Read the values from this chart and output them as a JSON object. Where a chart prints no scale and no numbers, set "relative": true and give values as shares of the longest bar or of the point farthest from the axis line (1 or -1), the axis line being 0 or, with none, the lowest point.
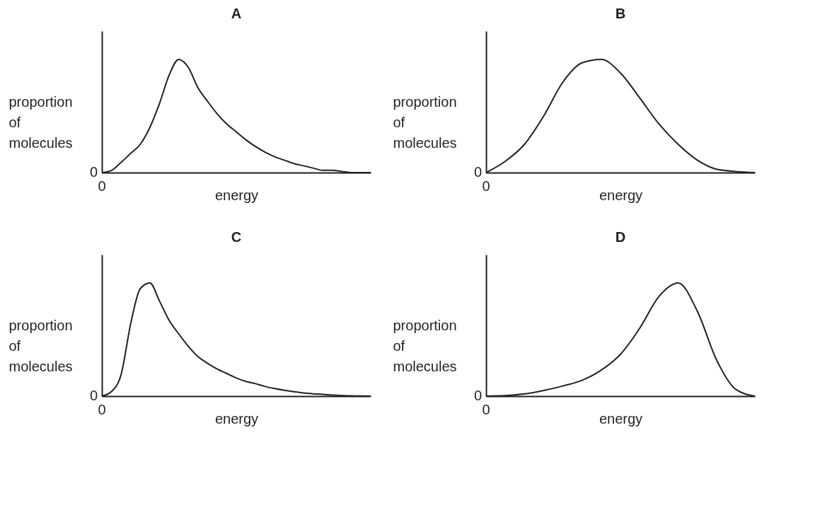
{
  "chart_data": [
    {
      "type": "line",
      "title": "A",
      "xlabel": "energy",
      "ylabel": "proportion of molecules",
      "relative": true,
      "marker": "none",
      "legend": false,
      "grid": false,
      "annotations": [
        "0",
        "0"
      ],
      "categories": [
        null,
        null,
        null,
        null,
        null,
        null,
        null,
        null,
        null,
        null,
        null,
        null,
        null,
        null,
        null,
        null,
        null,
        null,
        null,
        null,
        null,
        null,
        null,
        null,
        null,
        null,
        null,
        null,
        null
      ],
      "series": [
        {
          "color": "#231f20",
          "values": [
            0,
            0.02,
            0.09,
            0.17,
            0.25,
            0.4,
            0.61,
            0.86,
            1,
            0.93,
            0.75,
            0.63,
            0.52,
            0.43,
            0.36,
            0.29,
            0.23,
            0.18,
            0.14,
            0.11,
            0.08,
            0.06,
            0.04,
            0.02,
            0.02,
            0.01,
            0,
            0,
            0
          ]
        }
      ]
    },
    {
      "type": "line",
      "title": "B",
      "xlabel": "energy",
      "ylabel": "proportion of molecules",
      "relative": true,
      "marker": "none",
      "legend": false,
      "grid": false,
      "annotations": [
        "0",
        "0"
      ],
      "categories": [
        null,
        null,
        null,
        null,
        null,
        null,
        null,
        null,
        null,
        null,
        null,
        null,
        null,
        null,
        null
      ],
      "series": [
        {
          "color": "#231f20",
          "values": [
            0,
            0.1,
            0.25,
            0.5,
            0.8,
            0.97,
            1,
            0.88,
            0.66,
            0.43,
            0.25,
            0.11,
            0.03,
            0.01,
            0
          ]
        }
      ]
    },
    {
      "type": "line",
      "title": "C",
      "xlabel": "energy",
      "ylabel": "proportion of molecules",
      "relative": true,
      "marker": "none",
      "legend": false,
      "grid": false,
      "annotations": [
        "0",
        "0"
      ],
      "categories": [
        null,
        null,
        null,
        null,
        null,
        null,
        null,
        null,
        null,
        null,
        null,
        null,
        null,
        null,
        null,
        null,
        null,
        null,
        null,
        null,
        null,
        null,
        null,
        null,
        null,
        null,
        null,
        null,
        null
      ],
      "series": [
        {
          "color": "#231f20",
          "values": [
            0,
            0.04,
            0.19,
            0.64,
            0.95,
            1,
            0.84,
            0.67,
            0.55,
            0.44,
            0.35,
            0.29,
            0.24,
            0.2,
            0.16,
            0.13,
            0.11,
            0.085,
            0.067,
            0.052,
            0.039,
            0.028,
            0.021,
            0.016,
            0.01,
            0.005,
            0.003,
            0.001,
            0
          ]
        }
      ]
    },
    {
      "type": "line",
      "title": "D",
      "xlabel": "energy",
      "ylabel": "proportion of molecules",
      "relative": true,
      "marker": "none",
      "legend": false,
      "grid": false,
      "annotations": [
        "0",
        "0"
      ],
      "categories": [
        null,
        null,
        null,
        null,
        null,
        null,
        null,
        null,
        null,
        null,
        null,
        null,
        null,
        null,
        null
      ],
      "series": [
        {
          "color": "#231f20",
          "values": [
            0,
            0.004,
            0.02,
            0.05,
            0.09,
            0.14,
            0.23,
            0.37,
            0.6,
            0.88,
            1,
            0.75,
            0.32,
            0.06,
            0
          ]
        }
      ]
    }
  ]
}
